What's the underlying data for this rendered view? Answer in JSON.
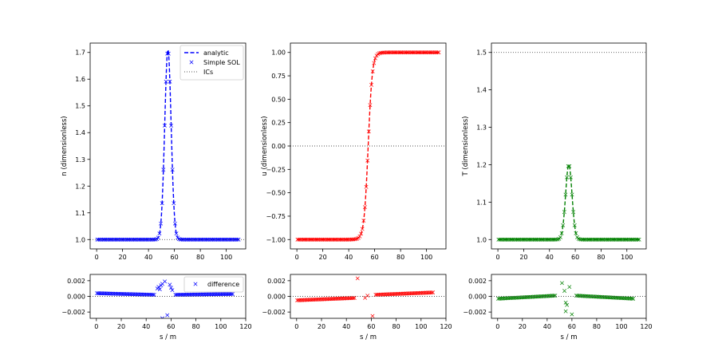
{
  "chart_data": [
    {
      "type": "line",
      "ylabel": "n (dimensionless)",
      "xlim": [
        -5,
        115
      ],
      "ylim": [
        0.965,
        1.735
      ],
      "xticks": [
        0,
        20,
        40,
        60,
        80,
        100
      ],
      "yticks": [
        1.0,
        1.1,
        1.2,
        1.3,
        1.4,
        1.5,
        1.6,
        1.7
      ],
      "legend": {
        "placement": "top-right",
        "entries": [
          "analytic",
          "Simple SOL",
          "ICs"
        ]
      },
      "series": [
        {
          "name": "analytic",
          "style": "dashed",
          "color": "#0000ff",
          "profile": "peak",
          "baseline": 1.0,
          "peak": 1.71,
          "center": 55,
          "width": 3.5
        },
        {
          "name": "Simple SOL",
          "style": "x-markers",
          "color": "#0000ff",
          "profile": "peak",
          "baseline": 1.0,
          "peak": 1.71,
          "center": 55,
          "width": 3.5
        },
        {
          "name": "ICs",
          "style": "dotted",
          "color": "#555555",
          "profile": "constant",
          "value": 1.0
        }
      ]
    },
    {
      "type": "line",
      "ylabel": "u (dimensionless)",
      "xlim": [
        -5,
        115
      ],
      "ylim": [
        -1.1,
        1.1
      ],
      "xticks": [
        0,
        20,
        40,
        60,
        80,
        100
      ],
      "yticks": [
        -1.0,
        -0.75,
        -0.5,
        -0.25,
        0.0,
        0.25,
        0.5,
        0.75,
        1.0
      ],
      "series": [
        {
          "name": "analytic",
          "style": "dashed",
          "color": "#ff0000",
          "profile": "tanh",
          "center": 55,
          "width": 3.2
        },
        {
          "name": "Simple SOL",
          "style": "x-markers",
          "color": "#ff0000",
          "profile": "tanh",
          "center": 55,
          "width": 3.2
        },
        {
          "name": "ICs",
          "style": "dotted",
          "color": "#555555",
          "profile": "constant",
          "value": 0.0
        }
      ]
    },
    {
      "type": "line",
      "ylabel": "T (dimensionless)",
      "xlim": [
        -5,
        115
      ],
      "ylim": [
        0.975,
        1.525
      ],
      "xticks": [
        0,
        20,
        40,
        60,
        80,
        100
      ],
      "yticks": [
        1.0,
        1.1,
        1.2,
        1.3,
        1.4,
        1.5
      ],
      "series": [
        {
          "name": "analytic",
          "style": "dashed",
          "color": "#008000",
          "profile": "peak",
          "baseline": 1.0,
          "peak": 1.2,
          "center": 55,
          "width": 3.5
        },
        {
          "name": "Simple SOL",
          "style": "x-markers",
          "color": "#008000",
          "profile": "peak",
          "baseline": 1.0,
          "peak": 1.2,
          "center": 55,
          "width": 3.5
        },
        {
          "name": "ICs",
          "style": "dotted",
          "color": "#555555",
          "profile": "constant",
          "value": 1.5
        }
      ]
    },
    {
      "type": "scatter",
      "xlabel": "s / m",
      "xlim": [
        -5,
        120
      ],
      "ylim": [
        -0.0028,
        0.0028
      ],
      "xticks": [
        0,
        20,
        40,
        60,
        80,
        100,
        120
      ],
      "yticks": [
        -0.002,
        0.0,
        0.002
      ],
      "legend": {
        "placement": "top-right",
        "entries": [
          "difference"
        ]
      },
      "series": [
        {
          "name": "difference",
          "style": "x-markers",
          "color": "#0000ff",
          "baseline_trend": [
            [
              0,
              0.0004
            ],
            [
              47,
              0.0002
            ],
            [
              63,
              0.0002
            ],
            [
              110,
              0.0003
            ]
          ],
          "outliers": [
            [
              49,
              0.001
            ],
            [
              50,
              0.0012
            ],
            [
              51,
              0.0009
            ],
            [
              52,
              0.0014
            ],
            [
              53,
              0.0016
            ],
            [
              55,
              0.0019
            ],
            [
              57,
              -0.0024
            ],
            [
              59,
              0.0015
            ],
            [
              60,
              0.0011
            ],
            [
              61,
              0.0008
            ],
            [
              53,
              -0.0028
            ]
          ]
        },
        {
          "name": "zero",
          "style": "dotted",
          "color": "#555555",
          "profile": "constant",
          "value": 0.0
        }
      ]
    },
    {
      "type": "scatter",
      "xlabel": "s / m",
      "xlim": [
        -5,
        120
      ],
      "ylim": [
        -0.0028,
        0.0028
      ],
      "xticks": [
        0,
        20,
        40,
        60,
        80,
        100,
        120
      ],
      "yticks": [
        -0.002,
        0.0,
        0.002
      ],
      "series": [
        {
          "name": "difference",
          "style": "x-markers",
          "color": "#ff0000",
          "baseline_trend": [
            [
              0,
              -0.0005
            ],
            [
              47,
              -0.0002
            ],
            [
              63,
              0.0002
            ],
            [
              110,
              0.0005
            ]
          ],
          "outliers": [
            [
              49,
              0.0023
            ],
            [
              61,
              -0.0025
            ],
            [
              55,
              -0.0002
            ],
            [
              57,
              0.0001
            ]
          ]
        },
        {
          "name": "zero",
          "style": "dotted",
          "color": "#555555",
          "profile": "constant",
          "value": 0.0
        }
      ]
    },
    {
      "type": "scatter",
      "xlabel": "s / m",
      "xlim": [
        -5,
        120
      ],
      "ylim": [
        -0.0028,
        0.0028
      ],
      "xticks": [
        0,
        20,
        40,
        60,
        80,
        100,
        120
      ],
      "yticks": [
        -0.002,
        0.0,
        0.002
      ],
      "series": [
        {
          "name": "difference",
          "style": "x-markers",
          "color": "#008000",
          "baseline_trend": [
            [
              0,
              -0.0003
            ],
            [
              47,
              0.0001
            ],
            [
              63,
              0.0001
            ],
            [
              110,
              -0.0003
            ]
          ],
          "outliers": [
            [
              52,
              0.0017
            ],
            [
              54,
              0.0007
            ],
            [
              55,
              -0.0008
            ],
            [
              56,
              -0.0011
            ],
            [
              58,
              0.0012
            ],
            [
              55,
              -0.0019
            ],
            [
              60,
              -0.0023
            ]
          ]
        },
        {
          "name": "zero",
          "style": "dotted",
          "color": "#555555",
          "profile": "constant",
          "value": 0.0
        }
      ]
    }
  ]
}
